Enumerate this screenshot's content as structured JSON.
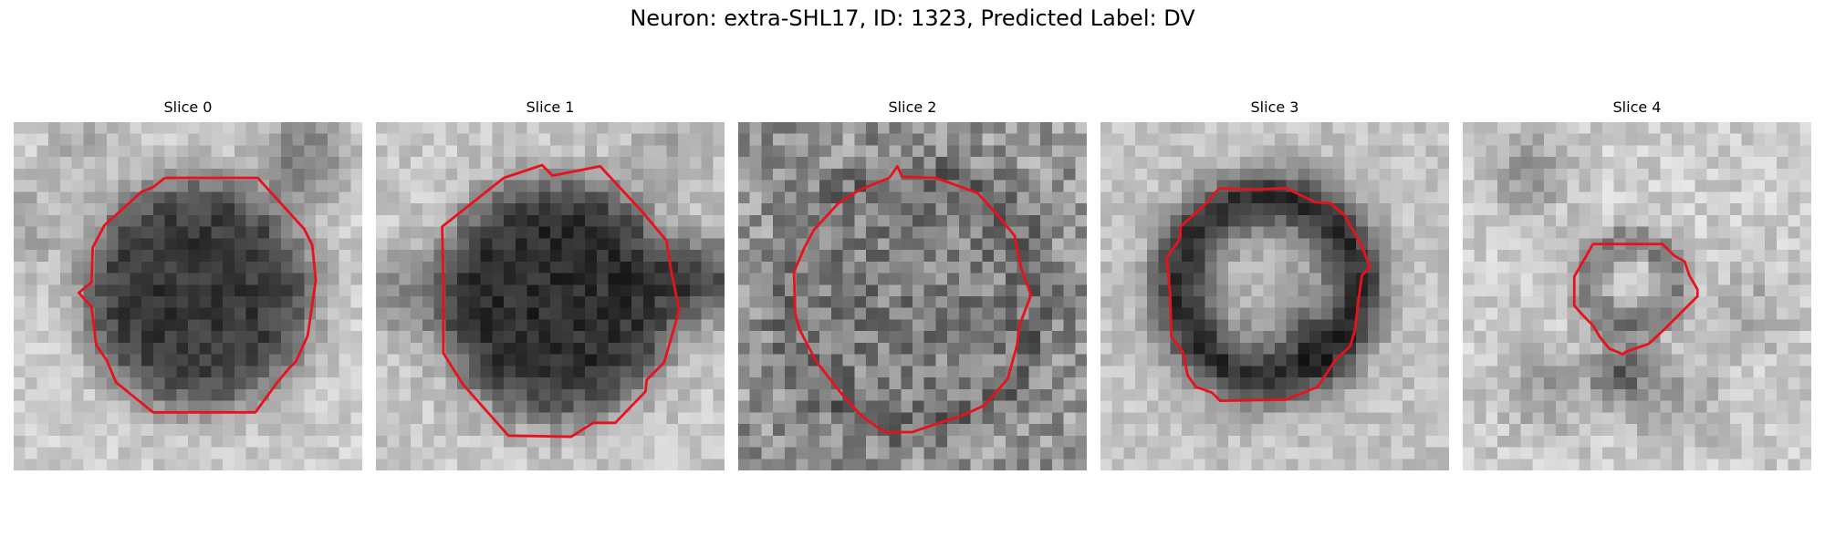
{
  "figure": {
    "title": "Neuron: extra-SHL17, ID: 1323, Predicted Label: DV",
    "contour_color": "#e8121c",
    "colormap": "gray"
  },
  "slices": [
    {
      "title": "Slice 0"
    },
    {
      "title": "Slice 1"
    },
    {
      "title": "Slice 2"
    },
    {
      "title": "Slice 3"
    },
    {
      "title": "Slice 4"
    }
  ]
}
